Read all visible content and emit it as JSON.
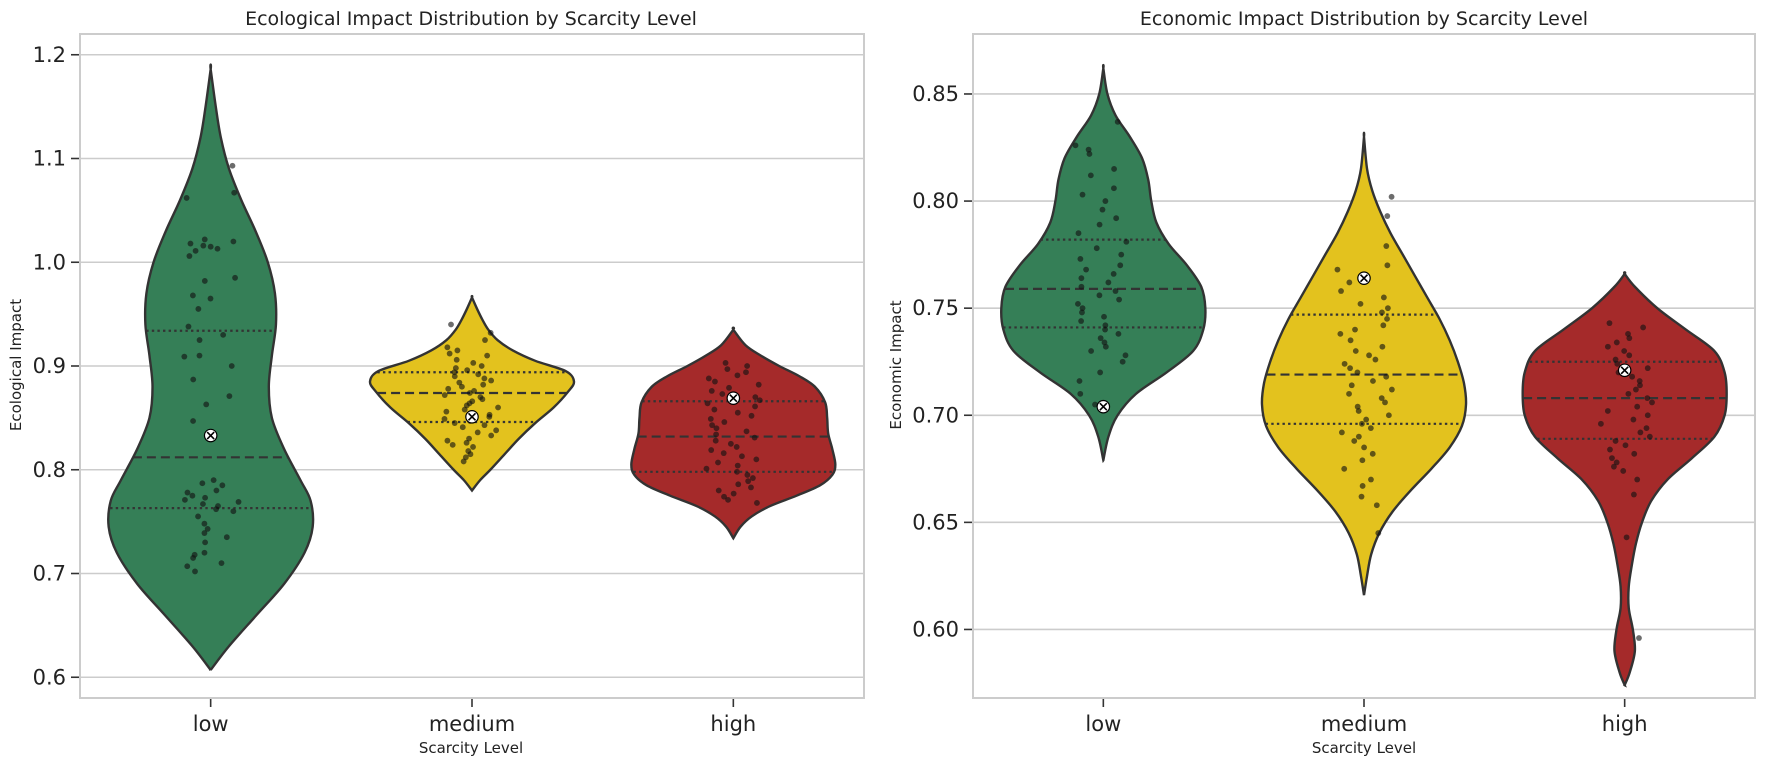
{
  "chart_data": [
    {
      "type": "violin",
      "title": "Ecological Impact Distribution by Scarcity Level",
      "xlabel": "Scarcity Level",
      "ylabel": "Ecological Impact",
      "categories": [
        "low",
        "medium",
        "high"
      ],
      "colors": [
        "#357f57",
        "#e3c21e",
        "#a52a2a"
      ],
      "ylim": [
        0.58,
        1.22
      ],
      "yticks": [
        0.6,
        0.7,
        0.8,
        0.9,
        1.0,
        1.1,
        1.2
      ],
      "ytick_labels": [
        "0.6",
        "0.7",
        "0.8",
        "0.9",
        "1.0",
        "1.1",
        "1.2"
      ],
      "grid": true,
      "groups": [
        {
          "category": "low",
          "quartiles": [
            0.763,
            0.812,
            0.934
          ],
          "mean": 0.833,
          "range": [
            0.607,
            1.186
          ],
          "density": [
            [
              0.607,
              0.0
            ],
            [
              0.63,
              0.18
            ],
            [
              0.66,
              0.45
            ],
            [
              0.69,
              0.72
            ],
            [
              0.72,
              0.92
            ],
            [
              0.745,
              1.0
            ],
            [
              0.77,
              0.98
            ],
            [
              0.79,
              0.88
            ],
            [
              0.82,
              0.72
            ],
            [
              0.85,
              0.6
            ],
            [
              0.88,
              0.57
            ],
            [
              0.91,
              0.6
            ],
            [
              0.94,
              0.64
            ],
            [
              0.97,
              0.63
            ],
            [
              1.0,
              0.56
            ],
            [
              1.03,
              0.44
            ],
            [
              1.06,
              0.3
            ],
            [
              1.09,
              0.18
            ],
            [
              1.12,
              0.1
            ],
            [
              1.15,
              0.05
            ],
            [
              1.186,
              0.0
            ]
          ],
          "points": [
            1.093,
            1.067,
            1.062,
            1.022,
            1.02,
            1.018,
            1.016,
            1.015,
            1.013,
            1.011,
            1.006,
            0.985,
            0.982,
            0.968,
            0.965,
            0.955,
            0.938,
            0.93,
            0.925,
            0.91,
            0.909,
            0.9,
            0.887,
            0.871,
            0.863,
            0.847,
            0.79,
            0.787,
            0.785,
            0.78,
            0.778,
            0.775,
            0.773,
            0.771,
            0.769,
            0.767,
            0.765,
            0.762,
            0.76,
            0.755,
            0.748,
            0.743,
            0.739,
            0.735,
            0.73,
            0.72,
            0.718,
            0.715,
            0.71,
            0.707,
            0.702
          ]
        },
        {
          "category": "medium",
          "quartiles": [
            0.846,
            0.874,
            0.894
          ],
          "mean": 0.851,
          "range": [
            0.78,
            0.966
          ],
          "density": [
            [
              0.78,
              0.0
            ],
            [
              0.79,
              0.08
            ],
            [
              0.8,
              0.18
            ],
            [
              0.815,
              0.32
            ],
            [
              0.83,
              0.46
            ],
            [
              0.845,
              0.62
            ],
            [
              0.86,
              0.8
            ],
            [
              0.875,
              0.94
            ],
            [
              0.885,
              1.0
            ],
            [
              0.895,
              0.92
            ],
            [
              0.905,
              0.62
            ],
            [
              0.915,
              0.4
            ],
            [
              0.925,
              0.25
            ],
            [
              0.935,
              0.16
            ],
            [
              0.945,
              0.1
            ],
            [
              0.955,
              0.05
            ],
            [
              0.966,
              0.0
            ]
          ],
          "points": [
            0.94,
            0.932,
            0.925,
            0.918,
            0.915,
            0.912,
            0.91,
            0.906,
            0.903,
            0.9,
            0.898,
            0.896,
            0.894,
            0.892,
            0.89,
            0.888,
            0.886,
            0.884,
            0.882,
            0.88,
            0.878,
            0.876,
            0.874,
            0.872,
            0.87,
            0.868,
            0.866,
            0.864,
            0.862,
            0.86,
            0.858,
            0.856,
            0.853,
            0.851,
            0.849,
            0.847,
            0.845,
            0.843,
            0.841,
            0.838,
            0.836,
            0.833,
            0.83,
            0.828,
            0.826,
            0.824,
            0.822,
            0.818,
            0.815,
            0.812,
            0.808
          ]
        },
        {
          "category": "high",
          "quartiles": [
            0.798,
            0.832,
            0.866
          ],
          "mean": 0.869,
          "range": [
            0.734,
            0.935
          ],
          "density": [
            [
              0.734,
              0.0
            ],
            [
              0.745,
              0.07
            ],
            [
              0.755,
              0.18
            ],
            [
              0.765,
              0.36
            ],
            [
              0.775,
              0.62
            ],
            [
              0.785,
              0.85
            ],
            [
              0.795,
              0.97
            ],
            [
              0.805,
              1.0
            ],
            [
              0.82,
              0.97
            ],
            [
              0.835,
              0.93
            ],
            [
              0.85,
              0.92
            ],
            [
              0.865,
              0.9
            ],
            [
              0.88,
              0.8
            ],
            [
              0.89,
              0.65
            ],
            [
              0.9,
              0.45
            ],
            [
              0.91,
              0.27
            ],
            [
              0.92,
              0.12
            ],
            [
              0.935,
              0.0
            ]
          ],
          "points": [
            0.903,
            0.9,
            0.897,
            0.894,
            0.891,
            0.888,
            0.885,
            0.882,
            0.879,
            0.876,
            0.873,
            0.87,
            0.867,
            0.864,
            0.861,
            0.858,
            0.855,
            0.852,
            0.849,
            0.846,
            0.843,
            0.84,
            0.837,
            0.834,
            0.831,
            0.828,
            0.825,
            0.822,
            0.819,
            0.816,
            0.813,
            0.81,
            0.807,
            0.804,
            0.801,
            0.798,
            0.795,
            0.792,
            0.789,
            0.786,
            0.783,
            0.78,
            0.777,
            0.774,
            0.771,
            0.768
          ]
        }
      ]
    },
    {
      "type": "violin",
      "title": "Economic Impact Distribution by Scarcity Level",
      "xlabel": "Scarcity Level",
      "ylabel": "Economic Impact",
      "categories": [
        "low",
        "medium",
        "high"
      ],
      "colors": [
        "#357f57",
        "#e3c21e",
        "#a52a2a"
      ],
      "ylim": [
        0.568,
        0.878
      ],
      "yticks": [
        0.6,
        0.65,
        0.7,
        0.75,
        0.8,
        0.85
      ],
      "ytick_labels": [
        "0.60",
        "0.65",
        "0.70",
        "0.75",
        "0.80",
        "0.85"
      ],
      "grid": true,
      "groups": [
        {
          "category": "low",
          "quartiles": [
            0.741,
            0.759,
            0.782
          ],
          "mean": 0.704,
          "range": [
            0.679,
            0.862
          ],
          "density": [
            [
              0.679,
              0.0
            ],
            [
              0.69,
              0.05
            ],
            [
              0.7,
              0.14
            ],
            [
              0.71,
              0.32
            ],
            [
              0.72,
              0.62
            ],
            [
              0.73,
              0.88
            ],
            [
              0.74,
              0.98
            ],
            [
              0.75,
              1.0
            ],
            [
              0.76,
              0.96
            ],
            [
              0.77,
              0.82
            ],
            [
              0.78,
              0.64
            ],
            [
              0.79,
              0.52
            ],
            [
              0.8,
              0.47
            ],
            [
              0.81,
              0.44
            ],
            [
              0.82,
              0.38
            ],
            [
              0.83,
              0.26
            ],
            [
              0.84,
              0.12
            ],
            [
              0.85,
              0.04
            ],
            [
              0.862,
              0.0
            ]
          ],
          "points": [
            0.837,
            0.826,
            0.824,
            0.822,
            0.815,
            0.812,
            0.806,
            0.803,
            0.8,
            0.796,
            0.792,
            0.789,
            0.785,
            0.781,
            0.778,
            0.775,
            0.773,
            0.77,
            0.768,
            0.766,
            0.764,
            0.762,
            0.76,
            0.758,
            0.756,
            0.754,
            0.752,
            0.75,
            0.748,
            0.746,
            0.744,
            0.742,
            0.74,
            0.738,
            0.736,
            0.734,
            0.732,
            0.73,
            0.728,
            0.725,
            0.72,
            0.716,
            0.71,
            0.705
          ]
        },
        {
          "category": "medium",
          "quartiles": [
            0.696,
            0.719,
            0.747
          ],
          "mean": 0.764,
          "range": [
            0.616,
            0.83
          ],
          "density": [
            [
              0.616,
              0.0
            ],
            [
              0.625,
              0.03
            ],
            [
              0.635,
              0.07
            ],
            [
              0.645,
              0.15
            ],
            [
              0.655,
              0.28
            ],
            [
              0.665,
              0.46
            ],
            [
              0.675,
              0.66
            ],
            [
              0.685,
              0.84
            ],
            [
              0.695,
              0.96
            ],
            [
              0.705,
              1.0
            ],
            [
              0.715,
              0.98
            ],
            [
              0.725,
              0.92
            ],
            [
              0.735,
              0.84
            ],
            [
              0.745,
              0.74
            ],
            [
              0.755,
              0.62
            ],
            [
              0.765,
              0.5
            ],
            [
              0.775,
              0.38
            ],
            [
              0.785,
              0.26
            ],
            [
              0.795,
              0.16
            ],
            [
              0.805,
              0.08
            ],
            [
              0.815,
              0.03
            ],
            [
              0.83,
              0.0
            ]
          ],
          "points": [
            0.802,
            0.793,
            0.779,
            0.77,
            0.768,
            0.762,
            0.758,
            0.755,
            0.752,
            0.75,
            0.748,
            0.745,
            0.742,
            0.74,
            0.738,
            0.735,
            0.732,
            0.73,
            0.728,
            0.726,
            0.724,
            0.722,
            0.72,
            0.718,
            0.716,
            0.714,
            0.712,
            0.71,
            0.708,
            0.706,
            0.704,
            0.702,
            0.7,
            0.698,
            0.696,
            0.694,
            0.692,
            0.69,
            0.688,
            0.685,
            0.682,
            0.679,
            0.675,
            0.67,
            0.667,
            0.662,
            0.658,
            0.645
          ]
        },
        {
          "category": "high",
          "quartiles": [
            0.689,
            0.708,
            0.725
          ],
          "mean": 0.721,
          "range": [
            0.574,
            0.766
          ],
          "density": [
            [
              0.574,
              0.0
            ],
            [
              0.58,
              0.05
            ],
            [
              0.59,
              0.1
            ],
            [
              0.6,
              0.08
            ],
            [
              0.61,
              0.04
            ],
            [
              0.62,
              0.04
            ],
            [
              0.63,
              0.07
            ],
            [
              0.64,
              0.11
            ],
            [
              0.65,
              0.17
            ],
            [
              0.66,
              0.26
            ],
            [
              0.67,
              0.42
            ],
            [
              0.68,
              0.66
            ],
            [
              0.69,
              0.88
            ],
            [
              0.7,
              0.98
            ],
            [
              0.71,
              1.0
            ],
            [
              0.72,
              0.98
            ],
            [
              0.73,
              0.88
            ],
            [
              0.74,
              0.6
            ],
            [
              0.75,
              0.32
            ],
            [
              0.76,
              0.1
            ],
            [
              0.766,
              0.0
            ]
          ],
          "points": [
            0.743,
            0.741,
            0.738,
            0.736,
            0.734,
            0.732,
            0.73,
            0.728,
            0.726,
            0.724,
            0.722,
            0.72,
            0.718,
            0.716,
            0.714,
            0.712,
            0.71,
            0.708,
            0.706,
            0.704,
            0.702,
            0.7,
            0.698,
            0.696,
            0.694,
            0.692,
            0.69,
            0.688,
            0.686,
            0.684,
            0.682,
            0.68,
            0.678,
            0.676,
            0.674,
            0.67,
            0.663,
            0.643,
            0.596
          ]
        }
      ]
    }
  ]
}
